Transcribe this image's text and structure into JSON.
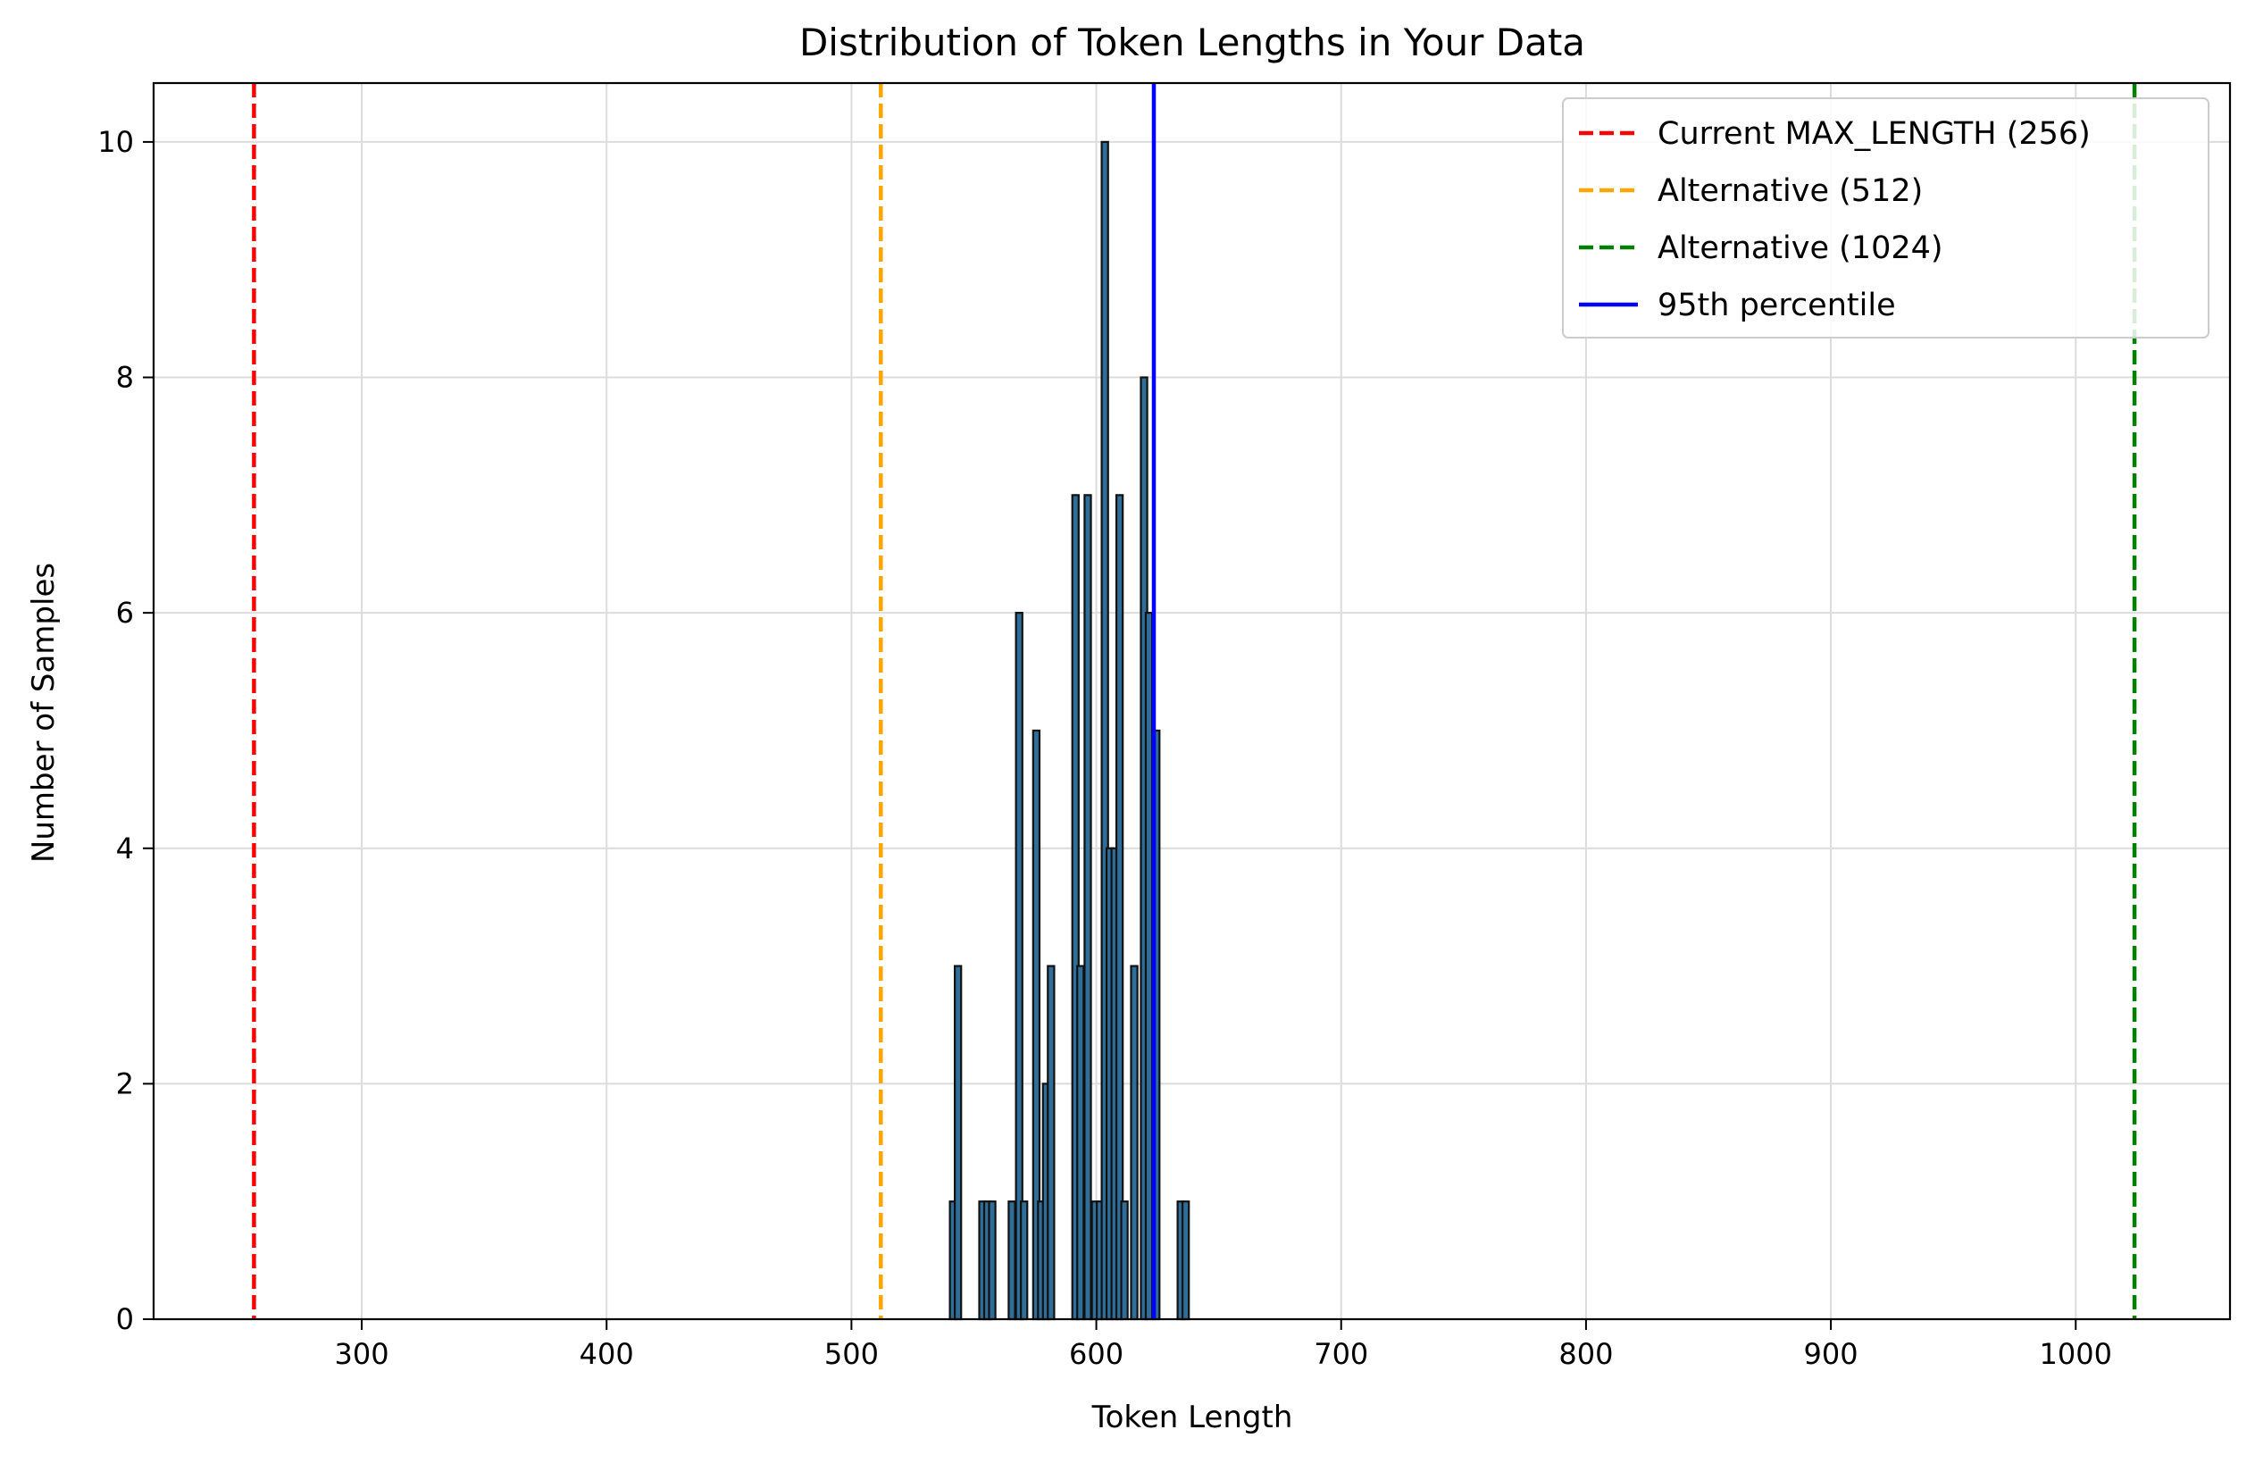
{
  "chart_data": {
    "type": "bar",
    "title": "Distribution of Token Lengths in Your Data",
    "xlabel": "Token Length",
    "ylabel": "Number of Samples",
    "xlim": [
      215,
      1063
    ],
    "ylim": [
      0,
      10.5
    ],
    "x_ticks": [
      300,
      400,
      500,
      600,
      700,
      800,
      900,
      1000
    ],
    "y_ticks": [
      0,
      2,
      4,
      6,
      8,
      10
    ],
    "grid": true,
    "legend_position": "top-right",
    "bar_width": 2.6,
    "bar_fill": "#2f6e98",
    "bar_edge": "#111111",
    "bins": [
      {
        "x": 541.5,
        "count": 1
      },
      {
        "x": 543.5,
        "count": 3
      },
      {
        "x": 553.5,
        "count": 1
      },
      {
        "x": 555.5,
        "count": 1
      },
      {
        "x": 557.5,
        "count": 1
      },
      {
        "x": 565.5,
        "count": 1
      },
      {
        "x": 568.5,
        "count": 6
      },
      {
        "x": 570.5,
        "count": 1
      },
      {
        "x": 575.5,
        "count": 5
      },
      {
        "x": 577.5,
        "count": 1
      },
      {
        "x": 579.5,
        "count": 2
      },
      {
        "x": 581.5,
        "count": 3
      },
      {
        "x": 591.5,
        "count": 7
      },
      {
        "x": 593.5,
        "count": 3
      },
      {
        "x": 596.5,
        "count": 7
      },
      {
        "x": 599.5,
        "count": 1
      },
      {
        "x": 601.5,
        "count": 1
      },
      {
        "x": 603.5,
        "count": 10
      },
      {
        "x": 605.5,
        "count": 4
      },
      {
        "x": 607.5,
        "count": 4
      },
      {
        "x": 609.5,
        "count": 7
      },
      {
        "x": 611.5,
        "count": 1
      },
      {
        "x": 615.5,
        "count": 3
      },
      {
        "x": 619.5,
        "count": 8
      },
      {
        "x": 621.5,
        "count": 6
      },
      {
        "x": 624.5,
        "count": 5
      },
      {
        "x": 634.5,
        "count": 1
      },
      {
        "x": 636.5,
        "count": 1
      }
    ],
    "reference_lines": [
      {
        "name": "Current MAX_LENGTH (256)",
        "x": 256,
        "color": "#ff0000",
        "style": "dashed"
      },
      {
        "name": "Alternative (512)",
        "x": 512,
        "color": "#ffa500",
        "style": "dashed"
      },
      {
        "name": "Alternative (1024)",
        "x": 1024,
        "color": "#008000",
        "style": "dashed"
      },
      {
        "name": "95th percentile",
        "x": 623.5,
        "color": "#0000ff",
        "style": "solid"
      }
    ]
  }
}
